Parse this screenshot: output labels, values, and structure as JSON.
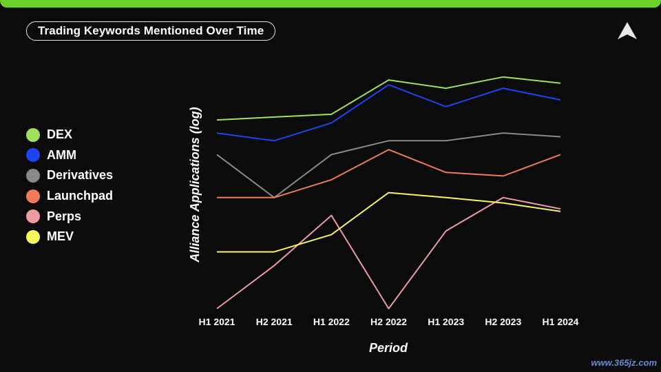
{
  "title": "Trading Keywords Mentioned Over Time",
  "colors": {
    "top_bar": "#6bd12a",
    "background": "#0b0b0b"
  },
  "logo_icon": "triangle-logo-icon",
  "watermark": "www.365jz.com",
  "chart_data": {
    "type": "line",
    "xlabel": "Period",
    "ylabel": "Alliance Applications (log)",
    "yscale": "log",
    "grid": false,
    "legend_position": "left",
    "categories": [
      "H1 2021",
      "H2 2021",
      "H1 2022",
      "H2 2022",
      "H1 2023",
      "H2 2023",
      "H1 2024"
    ],
    "ylim": [
      1,
      50
    ],
    "series": [
      {
        "name": "DEX",
        "color": "#9fe15a",
        "values": [
          21,
          22,
          23,
          40,
          35,
          42,
          38
        ]
      },
      {
        "name": "AMM",
        "color": "#1f43f0",
        "values": [
          17,
          15,
          20,
          37,
          26,
          35,
          29
        ]
      },
      {
        "name": "Derivatives",
        "color": "#8a8a8a",
        "values": [
          12,
          6,
          12,
          15,
          15,
          17,
          16
        ]
      },
      {
        "name": "Launchpad",
        "color": "#f07a5a",
        "values": [
          6,
          6,
          8,
          13,
          9,
          8.5,
          12
        ]
      },
      {
        "name": "Perps",
        "color": "#ee9ca4",
        "values": [
          1,
          2,
          4.5,
          1,
          3.5,
          6,
          5
        ]
      },
      {
        "name": "MEV",
        "color": "#f7f55a",
        "values": [
          2.5,
          2.5,
          3.3,
          6.5,
          6,
          5.5,
          4.8
        ]
      }
    ]
  }
}
